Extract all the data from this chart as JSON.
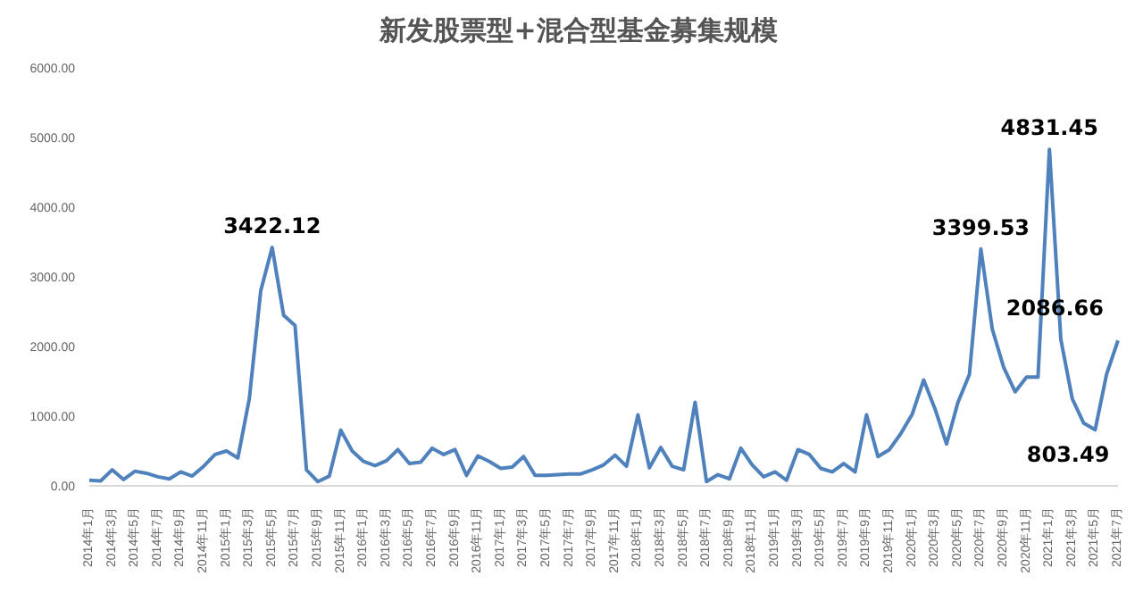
{
  "chart_data": {
    "type": "line",
    "title": "新发股票型+混合型基金募集规模",
    "categories": [
      "2014年1月",
      null,
      "2014年3月",
      null,
      "2014年5月",
      null,
      "2014年7月",
      null,
      "2014年9月",
      null,
      "2014年11月",
      null,
      "2015年1月",
      null,
      "2015年3月",
      null,
      "2015年5月",
      null,
      "2015年7月",
      null,
      "2015年9月",
      null,
      "2015年11月",
      null,
      "2016年1月",
      null,
      "2016年3月",
      null,
      "2016年5月",
      null,
      "2016年7月",
      null,
      "2016年9月",
      null,
      "2016年11月",
      null,
      "2017年1月",
      null,
      "2017年3月",
      null,
      "2017年5月",
      null,
      "2017年7月",
      null,
      "2017年9月",
      null,
      "2017年11月",
      null,
      "2018年1月",
      null,
      "2018年3月",
      null,
      "2018年5月",
      null,
      "2018年7月",
      null,
      "2018年9月",
      null,
      "2018年11月",
      null,
      "2019年1月",
      null,
      "2019年3月",
      null,
      "2019年5月",
      null,
      "2019年7月",
      null,
      "2019年9月",
      null,
      "2019年11月",
      null,
      "2020年1月",
      null,
      "2020年3月",
      null,
      "2020年5月",
      null,
      "2020年7月",
      null,
      "2020年9月",
      null,
      "2020年11月",
      null,
      "2021年1月",
      null,
      "2021年3月",
      null,
      "2021年5月",
      null,
      "2021年7月"
    ],
    "series": [
      {
        "color": "#4f81bd",
        "values": [
          80,
          70,
          230,
          90,
          210,
          180,
          130,
          100,
          200,
          140,
          280,
          450,
          500,
          400,
          1250,
          2800,
          3422.12,
          2450,
          2300,
          230,
          60,
          140,
          800,
          500,
          350,
          290,
          360,
          520,
          320,
          340,
          540,
          450,
          520,
          150,
          430,
          350,
          250,
          270,
          420,
          150,
          150,
          160,
          170,
          170,
          230,
          300,
          440,
          280,
          1020,
          260,
          550,
          280,
          230,
          1200,
          60,
          160,
          100,
          540,
          300,
          130,
          200,
          80,
          520,
          450,
          250,
          200,
          320,
          200,
          1020,
          420,
          520,
          750,
          1030,
          1520,
          1100,
          600,
          1200,
          1600,
          3399.53,
          2250,
          1700,
          1350,
          1560,
          1560,
          4831.45,
          2100,
          1250,
          900,
          803.49,
          1600,
          2086.66
        ],
        "value_labels": [
          null,
          null,
          null,
          null,
          null,
          null,
          null,
          null,
          null,
          null,
          null,
          null,
          null,
          null,
          null,
          null,
          "3422.12",
          null,
          null,
          null,
          null,
          null,
          null,
          null,
          null,
          null,
          null,
          null,
          null,
          null,
          null,
          null,
          null,
          null,
          null,
          null,
          null,
          null,
          null,
          null,
          null,
          null,
          null,
          null,
          null,
          null,
          null,
          null,
          null,
          null,
          null,
          null,
          null,
          null,
          null,
          null,
          null,
          null,
          null,
          null,
          null,
          null,
          null,
          null,
          null,
          null,
          null,
          null,
          null,
          null,
          null,
          null,
          null,
          null,
          null,
          null,
          null,
          null,
          "3399.53",
          null,
          null,
          null,
          null,
          null,
          "4831.45",
          null,
          null,
          null,
          "803.49",
          null,
          "2086.66"
        ]
      }
    ],
    "ylim": [
      0,
      6000
    ],
    "yticks": [
      {
        "value": 0,
        "label": "0.00"
      },
      {
        "value": 1000,
        "label": "1000.00"
      },
      {
        "value": 2000,
        "label": "2000.00"
      },
      {
        "value": 3000,
        "label": "3000.00"
      },
      {
        "value": 4000,
        "label": "4000.00"
      },
      {
        "value": 5000,
        "label": "5000.00"
      },
      {
        "value": 6000,
        "label": "6000.00"
      }
    ],
    "grid": false,
    "legend": false,
    "marker": "none",
    "line_style": "solid"
  }
}
